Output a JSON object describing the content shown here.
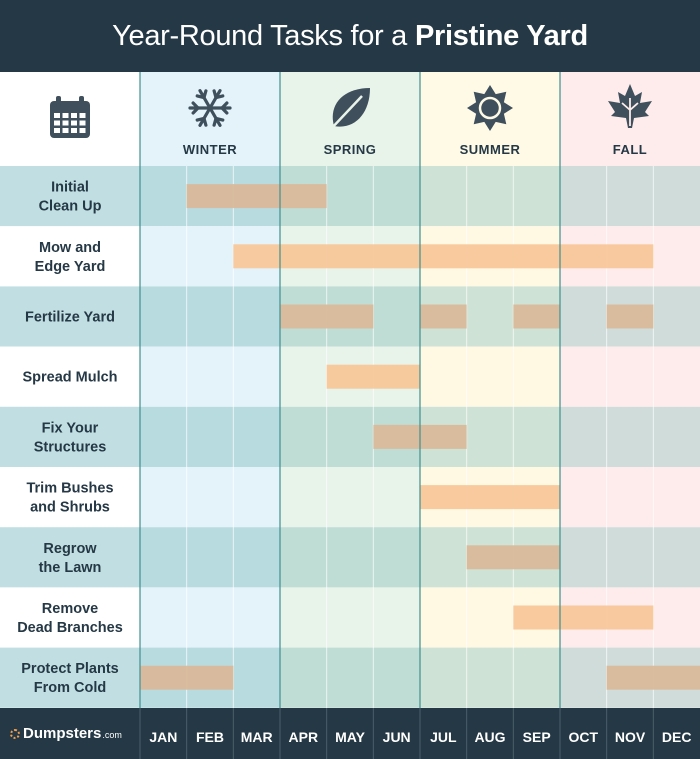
{
  "header": {
    "title_regular": "Year-Round Tasks for a",
    "title_bold": "Pristine Yard"
  },
  "branding": {
    "logo_text": "Dumpsters",
    "logo_suffix": ".com"
  },
  "colors": {
    "header_bg": "#253845",
    "bar_winter": "#d9b898",
    "bar_summer": "#f7c595",
    "divider": "#3f9090"
  },
  "chart_data": {
    "type": "gantt",
    "months": [
      "JAN",
      "FEB",
      "MAR",
      "APR",
      "MAY",
      "JUN",
      "JUL",
      "AUG",
      "SEP",
      "OCT",
      "NOV",
      "DEC"
    ],
    "seasons": [
      {
        "name": "WINTER",
        "icon": "snowflake-icon",
        "start": 1,
        "end": 3
      },
      {
        "name": "SPRING",
        "icon": "leaf-icon",
        "start": 4,
        "end": 6
      },
      {
        "name": "SUMMER",
        "icon": "sun-icon",
        "start": 7,
        "end": 9
      },
      {
        "name": "FALL",
        "icon": "maple-leaf-icon",
        "start": 10,
        "end": 12
      }
    ],
    "corner_icon": "calendar-icon",
    "tasks": [
      {
        "name": "Initial Clean Up",
        "lines": [
          "Initial",
          "Clean Up"
        ],
        "spans": [
          [
            2,
            4
          ]
        ]
      },
      {
        "name": "Mow and Edge Yard",
        "lines": [
          "Mow and",
          "Edge Yard"
        ],
        "spans": [
          [
            3,
            11
          ]
        ]
      },
      {
        "name": "Fertilize Yard",
        "lines": [
          "Fertilize Yard"
        ],
        "spans": [
          [
            4,
            5
          ],
          [
            7,
            7
          ],
          [
            9,
            9
          ],
          [
            11,
            11
          ]
        ]
      },
      {
        "name": "Spread Mulch",
        "lines": [
          "Spread Mulch"
        ],
        "spans": [
          [
            5,
            6
          ]
        ]
      },
      {
        "name": "Fix Your Structures",
        "lines": [
          "Fix Your",
          "Structures"
        ],
        "spans": [
          [
            6,
            7
          ]
        ]
      },
      {
        "name": "Trim Bushes and Shrubs",
        "lines": [
          "Trim Bushes",
          "and Shrubs"
        ],
        "spans": [
          [
            7,
            9
          ]
        ]
      },
      {
        "name": "Regrow the Lawn",
        "lines": [
          "Regrow",
          "the Lawn"
        ],
        "spans": [
          [
            8,
            9
          ]
        ]
      },
      {
        "name": "Remove Dead Branches",
        "lines": [
          "Remove",
          "Dead Branches"
        ],
        "spans": [
          [
            9,
            11
          ]
        ]
      },
      {
        "name": "Protect Plants From Cold",
        "lines": [
          "Protect Plants",
          "From Cold"
        ],
        "spans": [
          [
            1,
            2
          ],
          [
            11,
            12
          ]
        ]
      }
    ]
  }
}
